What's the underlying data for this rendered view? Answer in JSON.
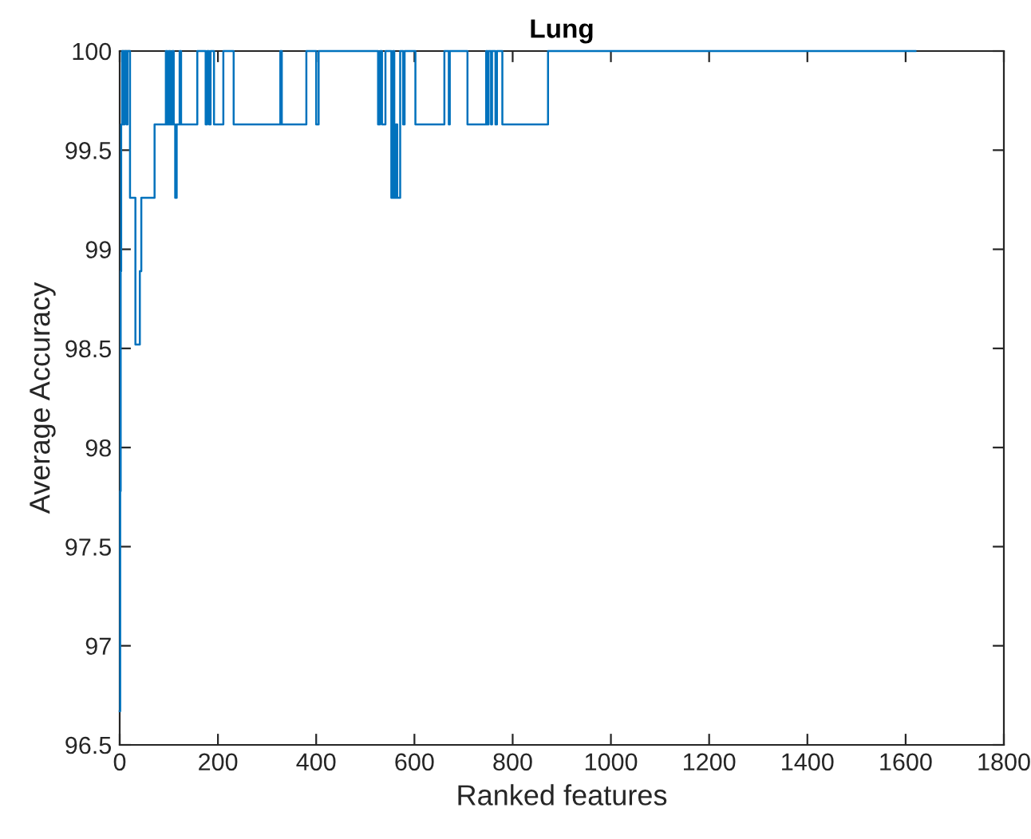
{
  "chart_data": {
    "type": "step",
    "title": "Lung",
    "xlabel": "Ranked features",
    "ylabel": "Average Accuracy",
    "xlim": [
      0,
      1800
    ],
    "xticks": [
      0,
      200,
      400,
      600,
      800,
      1000,
      1200,
      1400,
      1600,
      1800
    ],
    "ylim": [
      96.5,
      100
    ],
    "yticks": [
      96.5,
      97,
      97.5,
      98,
      98.5,
      99,
      99.5,
      100
    ],
    "grid": false,
    "legend": false,
    "series": [
      {
        "color": "#0072bd",
        "x": [
          0,
          1,
          2,
          3,
          5,
          8,
          10,
          14,
          16,
          21,
          32,
          41,
          44,
          71,
          94,
          97,
          100,
          103,
          107,
          110,
          113,
          116,
          122,
          125,
          158,
          175,
          178,
          182,
          185,
          192,
          211,
          232,
          327,
          330,
          380,
          400,
          405,
          526,
          530,
          534,
          541,
          553,
          556,
          559,
          562,
          565,
          571,
          577,
          580,
          602,
          661,
          670,
          672,
          708,
          746,
          749,
          751,
          756,
          758,
          765,
          768,
          779,
          872,
          1620
        ],
        "values": [
          96.67,
          97.78,
          98.89,
          99.63,
          100,
          99.63,
          100,
          99.63,
          100,
          99.26,
          98.52,
          98.89,
          99.26,
          99.63,
          100,
          99.63,
          100,
          99.63,
          100,
          99.63,
          99.26,
          99.63,
          100,
          99.63,
          100,
          99.63,
          100,
          99.63,
          100,
          99.63,
          100,
          99.63,
          100,
          99.63,
          100,
          99.63,
          100,
          99.63,
          100,
          99.63,
          100,
          99.26,
          100,
          99.26,
          99.63,
          99.26,
          100,
          99.63,
          100,
          99.63,
          100,
          99.63,
          100,
          99.63,
          100,
          99.63,
          100,
          99.63,
          100,
          99.63,
          100,
          99.63,
          100,
          100
        ]
      }
    ]
  }
}
